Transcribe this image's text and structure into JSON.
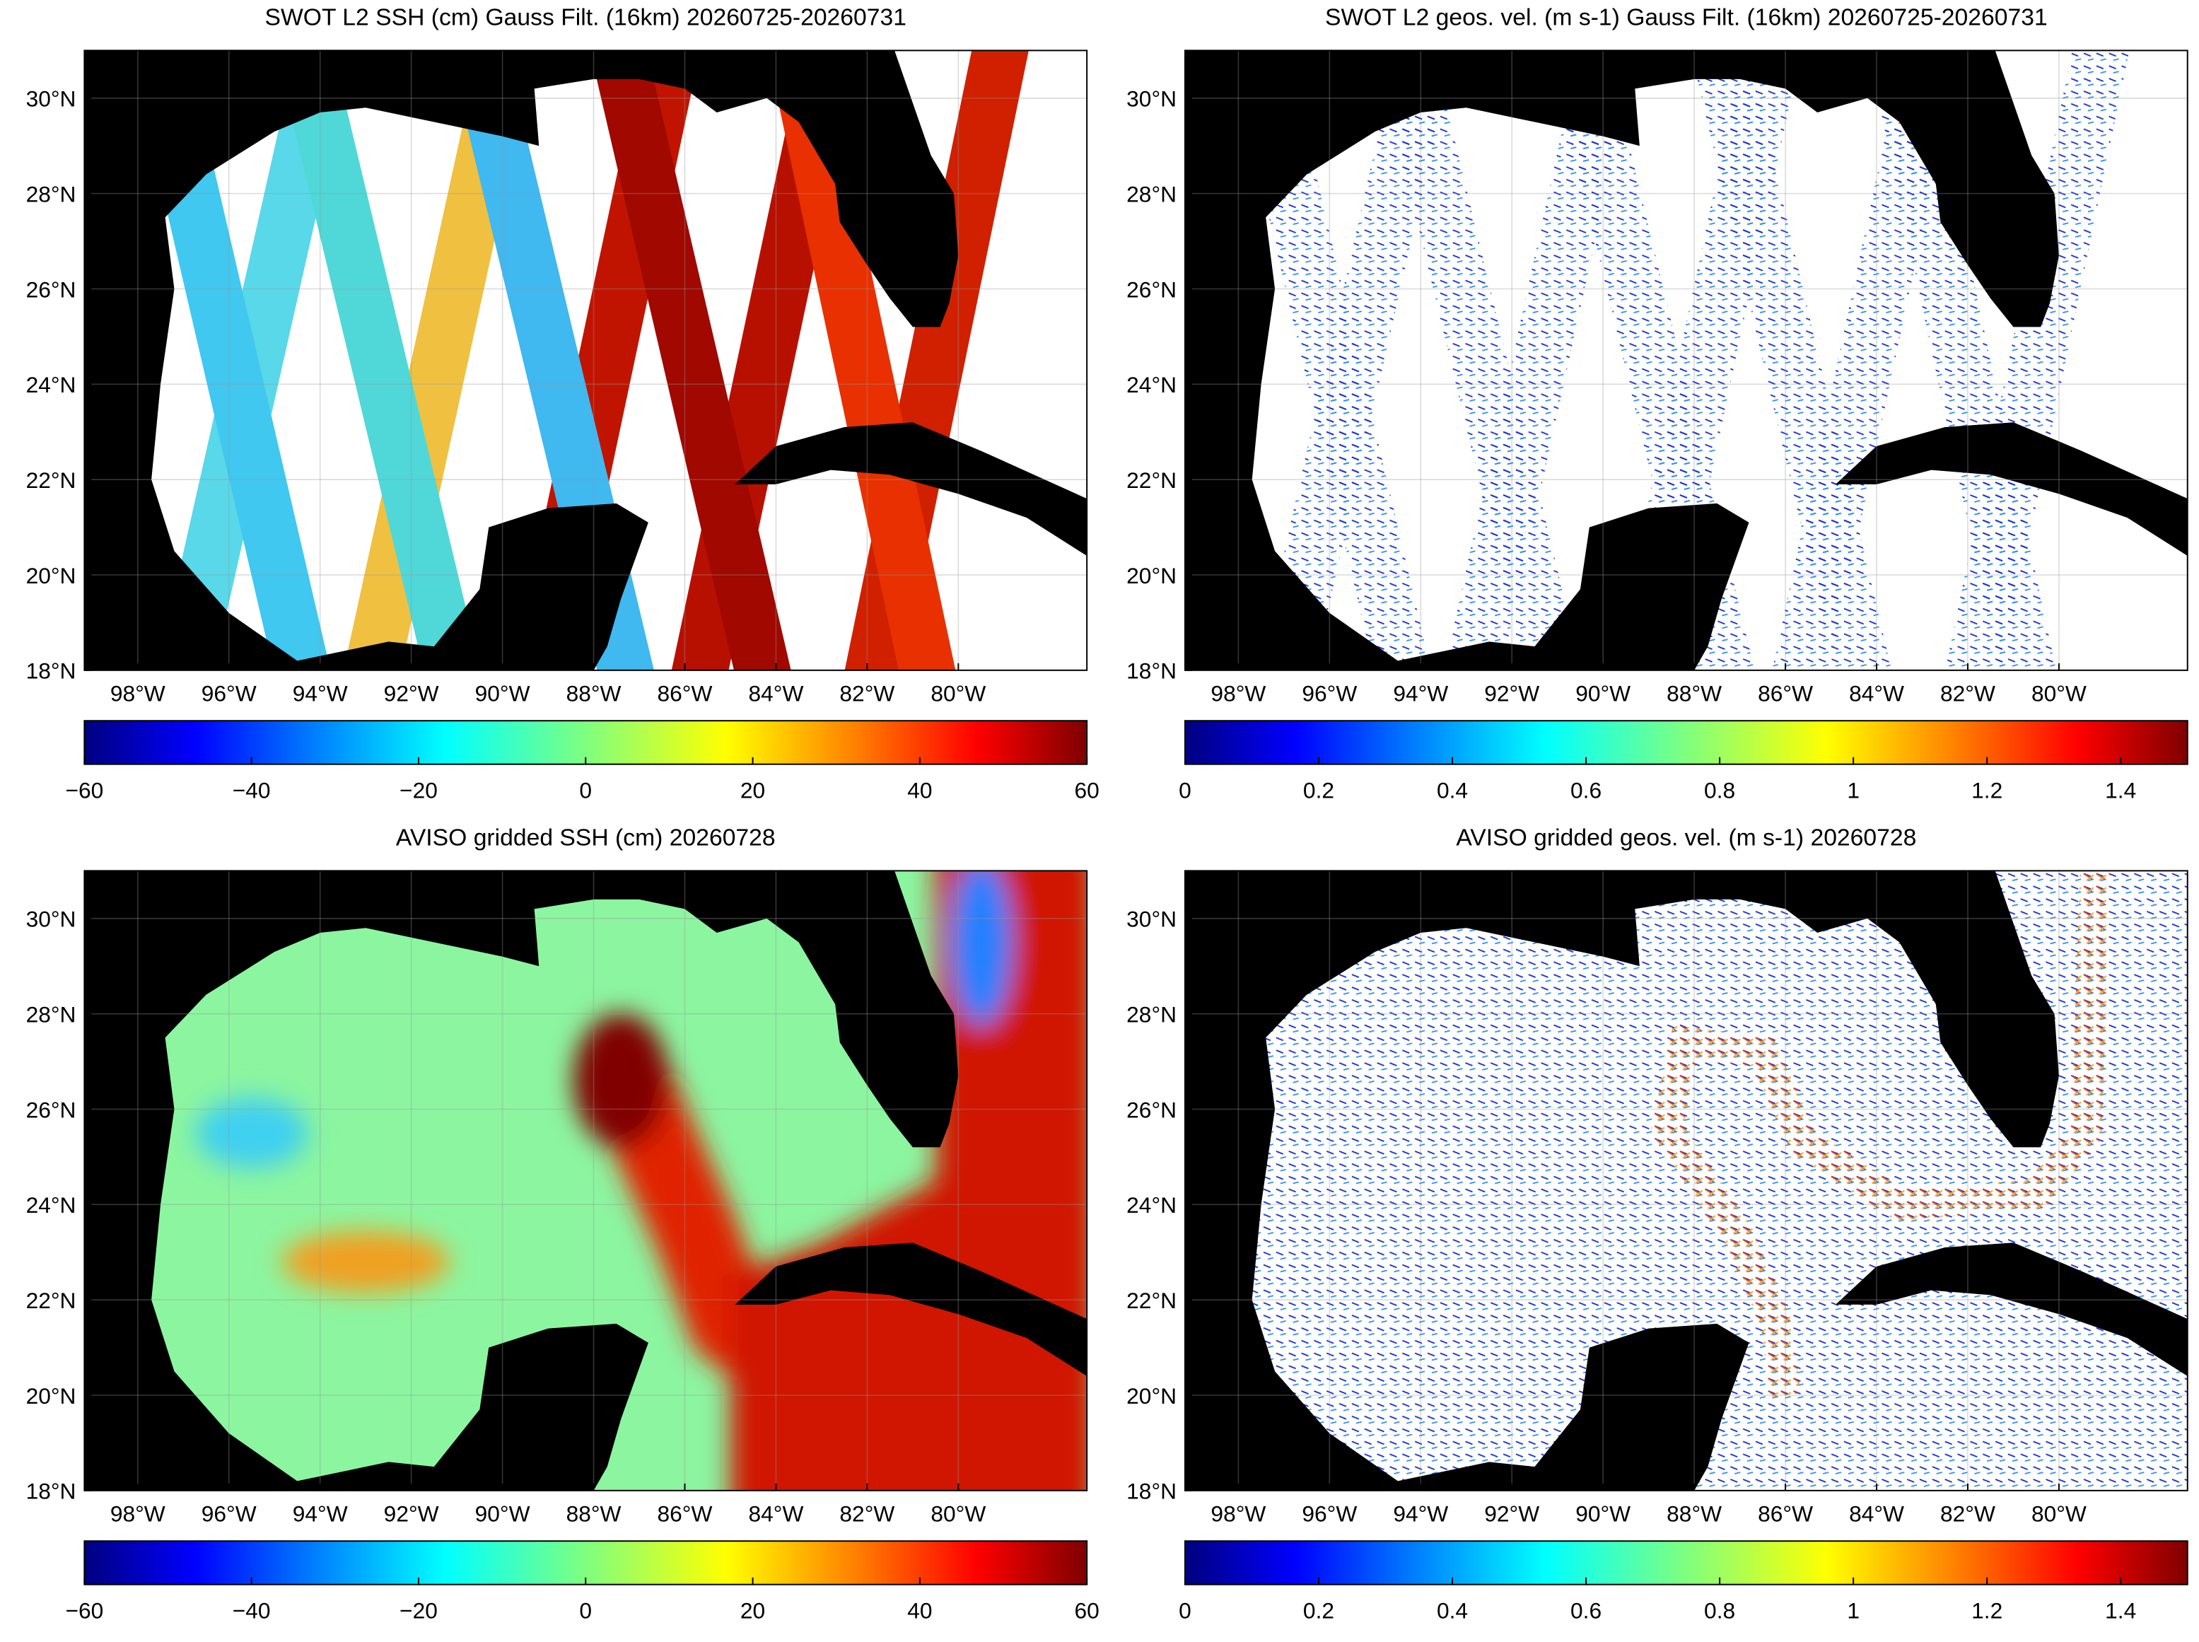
{
  "chart_data": [
    {
      "type": "map",
      "title": "SWOT L2 SSH (cm) Gauss Filt. (16km) 20260725-20260731",
      "xlim": [
        -99.17,
        -77.18
      ],
      "ylim": [
        18,
        31
      ],
      "xticks": [
        {
          "value": -98,
          "label": "98°W"
        },
        {
          "value": -96,
          "label": "96°W"
        },
        {
          "value": -94,
          "label": "94°W"
        },
        {
          "value": -92,
          "label": "92°W"
        },
        {
          "value": -90,
          "label": "90°W"
        },
        {
          "value": -88,
          "label": "88°W"
        },
        {
          "value": -86,
          "label": "86°W"
        },
        {
          "value": -84,
          "label": "84°W"
        },
        {
          "value": -82,
          "label": "82°W"
        },
        {
          "value": -80,
          "label": "80°W"
        }
      ],
      "yticks": [
        {
          "value": 18,
          "label": "18°N"
        },
        {
          "value": 20,
          "label": "20°N"
        },
        {
          "value": 22,
          "label": "22°N"
        },
        {
          "value": 24,
          "label": "24°N"
        },
        {
          "value": 26,
          "label": "26°N"
        },
        {
          "value": 28,
          "label": "28°N"
        },
        {
          "value": 30,
          "label": "30°N"
        }
      ],
      "grid": true,
      "colorbar": {
        "lim": [
          -60,
          60
        ],
        "ticks": [
          {
            "value": -60,
            "label": "−60"
          },
          {
            "value": -40,
            "label": "−40"
          },
          {
            "value": -20,
            "label": "−20"
          },
          0,
          20,
          40,
          60
        ]
      }
    },
    {
      "type": "map",
      "title": "SWOT L2 geos. vel. (m s-1) Gauss Filt. (16km) 20260725-20260731",
      "xlim": [
        -99.17,
        -77.18
      ],
      "ylim": [
        18,
        31
      ],
      "xticks": [
        {
          "value": -98,
          "label": "98°W"
        },
        {
          "value": -96,
          "label": "96°W"
        },
        {
          "value": -94,
          "label": "94°W"
        },
        {
          "value": -92,
          "label": "92°W"
        },
        {
          "value": -90,
          "label": "90°W"
        },
        {
          "value": -88,
          "label": "88°W"
        },
        {
          "value": -86,
          "label": "86°W"
        },
        {
          "value": -84,
          "label": "84°W"
        },
        {
          "value": -82,
          "label": "82°W"
        },
        {
          "value": -80,
          "label": "80°W"
        }
      ],
      "yticks": [
        {
          "value": 18,
          "label": "18°N"
        },
        {
          "value": 20,
          "label": "20°N"
        },
        {
          "value": 22,
          "label": "22°N"
        },
        {
          "value": 24,
          "label": "24°N"
        },
        {
          "value": 26,
          "label": "26°N"
        },
        {
          "value": 28,
          "label": "28°N"
        },
        {
          "value": 30,
          "label": "30°N"
        }
      ],
      "grid": true,
      "colorbar": {
        "lim": [
          0,
          1.5
        ],
        "ticks": [
          0,
          0.2,
          0.4,
          0.6,
          0.8,
          1,
          1.2,
          1.4
        ]
      }
    },
    {
      "type": "map",
      "title": "AVISO gridded SSH (cm) 20260728",
      "xlim": [
        -99.17,
        -77.18
      ],
      "ylim": [
        18,
        31
      ],
      "xticks": [
        {
          "value": -98,
          "label": "98°W"
        },
        {
          "value": -96,
          "label": "96°W"
        },
        {
          "value": -94,
          "label": "94°W"
        },
        {
          "value": -92,
          "label": "92°W"
        },
        {
          "value": -90,
          "label": "90°W"
        },
        {
          "value": -88,
          "label": "88°W"
        },
        {
          "value": -86,
          "label": "86°W"
        },
        {
          "value": -84,
          "label": "84°W"
        },
        {
          "value": -82,
          "label": "82°W"
        },
        {
          "value": -80,
          "label": "80°W"
        }
      ],
      "yticks": [
        {
          "value": 18,
          "label": "18°N"
        },
        {
          "value": 20,
          "label": "20°N"
        },
        {
          "value": 22,
          "label": "22°N"
        },
        {
          "value": 24,
          "label": "24°N"
        },
        {
          "value": 26,
          "label": "26°N"
        },
        {
          "value": 28,
          "label": "28°N"
        },
        {
          "value": 30,
          "label": "30°N"
        }
      ],
      "grid": true,
      "colorbar": {
        "lim": [
          -60,
          60
        ],
        "ticks": [
          {
            "value": -60,
            "label": "−60"
          },
          {
            "value": -40,
            "label": "−40"
          },
          {
            "value": -20,
            "label": "−20"
          },
          0,
          20,
          40,
          60
        ]
      }
    },
    {
      "type": "map",
      "title": "AVISO gridded geos. vel. (m s-1)  20260728",
      "xlim": [
        -99.17,
        -77.18
      ],
      "ylim": [
        18,
        31
      ],
      "xticks": [
        {
          "value": -98,
          "label": "98°W"
        },
        {
          "value": -96,
          "label": "96°W"
        },
        {
          "value": -94,
          "label": "94°W"
        },
        {
          "value": -92,
          "label": "92°W"
        },
        {
          "value": -90,
          "label": "90°W"
        },
        {
          "value": -88,
          "label": "88°W"
        },
        {
          "value": -86,
          "label": "86°W"
        },
        {
          "value": -84,
          "label": "84°W"
        },
        {
          "value": -82,
          "label": "82°W"
        },
        {
          "value": -80,
          "label": "80°W"
        }
      ],
      "yticks": [
        {
          "value": 18,
          "label": "18°N"
        },
        {
          "value": 20,
          "label": "20°N"
        },
        {
          "value": 22,
          "label": "22°N"
        },
        {
          "value": 24,
          "label": "24°N"
        },
        {
          "value": 26,
          "label": "26°N"
        },
        {
          "value": 28,
          "label": "28°N"
        },
        {
          "value": 30,
          "label": "30°N"
        }
      ],
      "grid": true,
      "colorbar": {
        "lim": [
          0,
          1.5
        ],
        "ticks": [
          0,
          0.2,
          0.4,
          0.6,
          0.8,
          1,
          1.2,
          1.4
        ]
      }
    }
  ]
}
